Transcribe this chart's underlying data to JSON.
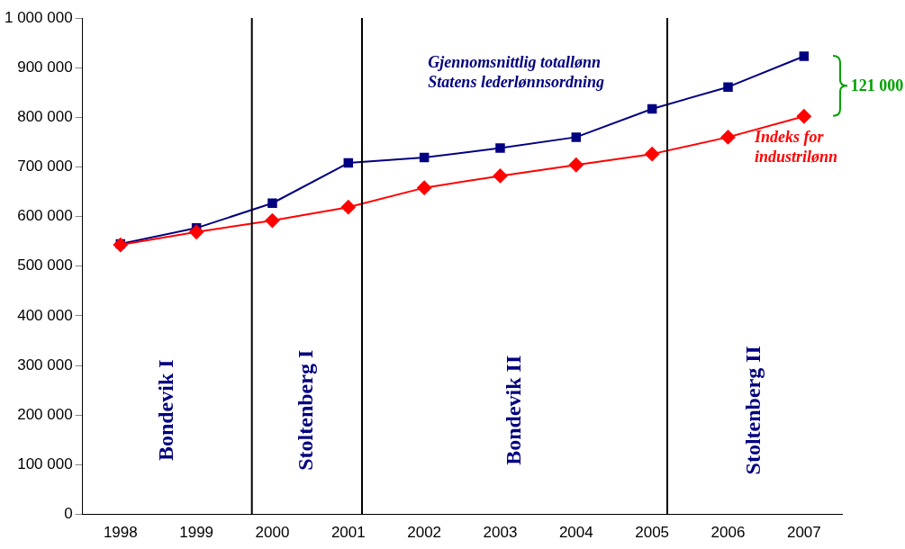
{
  "chart_data": {
    "type": "line",
    "x": [
      1998,
      1999,
      2000,
      2001,
      2002,
      2003,
      2004,
      2005,
      2006,
      2007
    ],
    "series": [
      {
        "name": "Gjennomsnittlig totallønn\nStatens lederlønnsordning",
        "color": "#000080",
        "marker": "square",
        "values": [
          545000,
          577000,
          627000,
          708000,
          719000,
          738000,
          760000,
          817000,
          861000,
          923000
        ]
      },
      {
        "name": "Indeks for\nindustrilønn",
        "color": "#ff0000",
        "marker": "diamond",
        "values": [
          543000,
          569000,
          592000,
          619000,
          658000,
          682000,
          704000,
          726000,
          760000,
          802000
        ]
      }
    ],
    "xlim": [
      1997.5,
      2007.5
    ],
    "xticks": [
      1998,
      1999,
      2000,
      2001,
      2002,
      2003,
      2004,
      2005,
      2006,
      2007
    ],
    "ylim": [
      0,
      1000000
    ],
    "yticks": [
      0,
      {
        "value": 100000,
        "label": "100 000"
      },
      {
        "value": 200000,
        "label": "200 000"
      },
      {
        "value": 300000,
        "label": "300 000"
      },
      {
        "value": 400000,
        "label": "400 000"
      },
      {
        "value": 500000,
        "label": "500 000"
      },
      {
        "value": 600000,
        "label": "600 000"
      },
      {
        "value": 700000,
        "label": "700 000"
      },
      {
        "value": 800000,
        "label": "800 000"
      },
      {
        "value": 900000,
        "label": "900 000"
      },
      {
        "value": 1000000,
        "label": "1 000 000"
      }
    ],
    "ref_lines": [
      {
        "axis": "x",
        "value": 1999.73,
        "color": "#000000"
      },
      {
        "axis": "x",
        "value": 2001.18,
        "color": "#000000"
      },
      {
        "axis": "x",
        "value": 2005.2,
        "color": "#000000"
      }
    ],
    "annotations": [
      "Bondevik I",
      "Stoltenberg I",
      "Bondevik II",
      "Stoltenberg II",
      "121 000"
    ],
    "grid": false,
    "legend": false,
    "line_style": "solid"
  }
}
